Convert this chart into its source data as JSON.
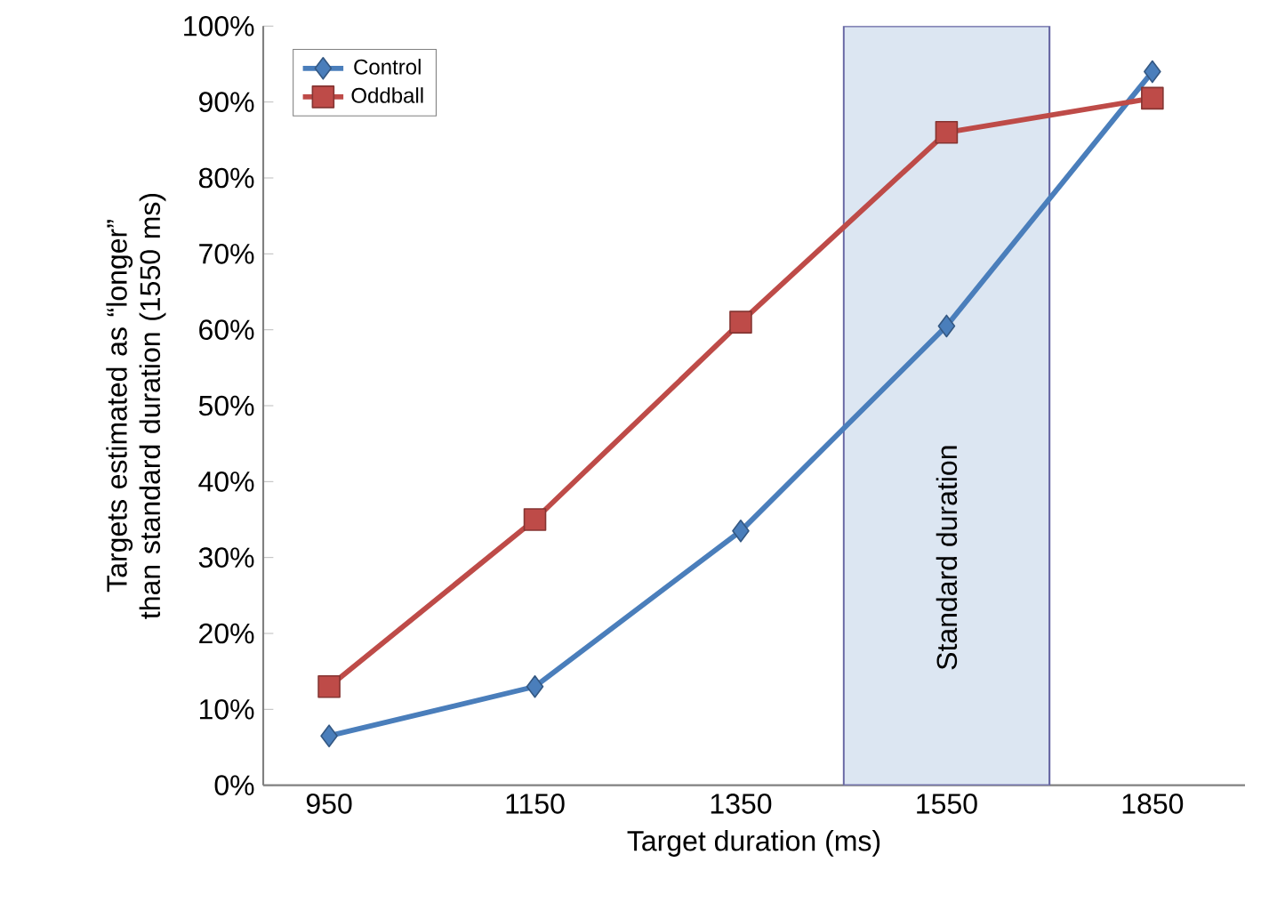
{
  "chart_data": {
    "type": "line",
    "xlabel": "Target duration (ms)",
    "ylabel": "Targets estimated as “longer” than standard duration (1550 ms)",
    "categories": [
      "950",
      "1150",
      "1350",
      "1550",
      "1850"
    ],
    "series": [
      {
        "name": "Control",
        "color": "#4a7ebb",
        "marker": "diamond",
        "values": [
          6.5,
          13,
          33.5,
          60.5,
          94
        ]
      },
      {
        "name": "Oddball",
        "color": "#be4b48",
        "marker": "square",
        "values": [
          13,
          35,
          61,
          86,
          90.5
        ]
      }
    ],
    "ylim": [
      0,
      100
    ],
    "yticks": [
      {
        "value": 0,
        "label": "0%"
      },
      {
        "value": 10,
        "label": "10%"
      },
      {
        "value": 20,
        "label": "20%"
      },
      {
        "value": 30,
        "label": "30%"
      },
      {
        "value": 40,
        "label": "40%"
      },
      {
        "value": 50,
        "label": "50%"
      },
      {
        "value": 60,
        "label": "60%"
      },
      {
        "value": 70,
        "label": "70%"
      },
      {
        "value": 80,
        "label": "80%"
      },
      {
        "value": 90,
        "label": "90%"
      },
      {
        "value": 100,
        "label": "100%"
      }
    ],
    "bands": [
      {
        "axis": "x",
        "from": "1550",
        "to": "1550",
        "label": "Standard duration",
        "color": "#dce6f2"
      }
    ],
    "legend": "top left",
    "grid": false,
    "line_style": "solid"
  }
}
